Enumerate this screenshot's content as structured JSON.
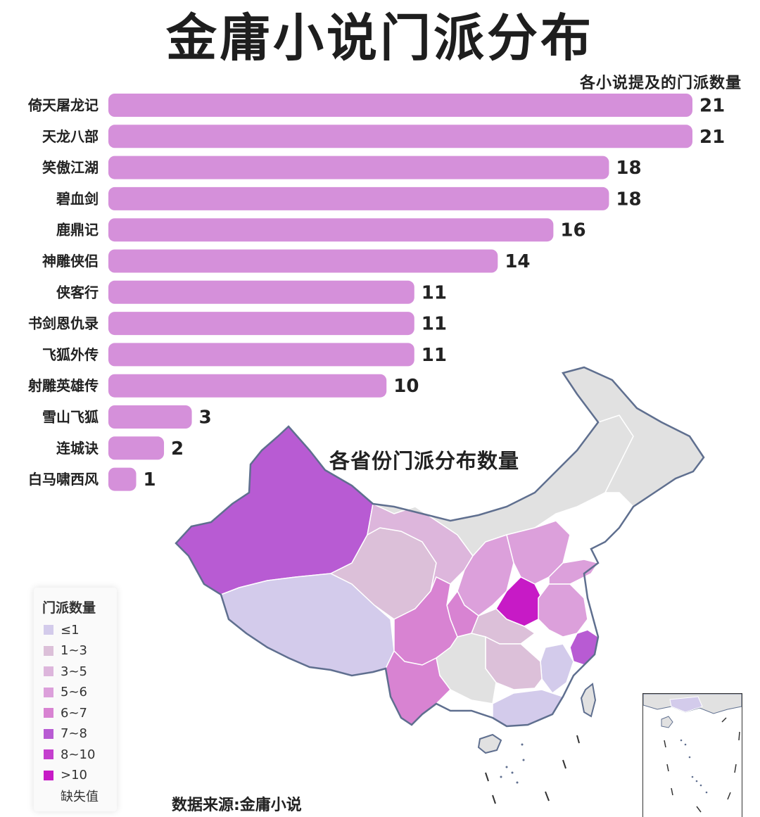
{
  "title": "金庸小说门派分布",
  "bar_subtitle": "各小说提及的门派数量",
  "map_title": "各省份门派分布数量",
  "source": "数据来源:金庸小说",
  "colors": {
    "bar": "#d590da",
    "missing": "#e1e1e1",
    "border": "#5f6f8f",
    "province_line": "#ffffff"
  },
  "legend": {
    "title": "门派数量",
    "items": [
      {
        "label": "≤1",
        "color": "#d3cbeb"
      },
      {
        "label": "1~3",
        "color": "#dcc0d9"
      },
      {
        "label": "3~5",
        "color": "#ddb6dc"
      },
      {
        "label": "5~6",
        "color": "#dca0db"
      },
      {
        "label": "6~7",
        "color": "#d883d2"
      },
      {
        "label": "7~8",
        "color": "#b85bd3"
      },
      {
        "label": "8~10",
        "color": "#c43fce"
      },
      {
        "label": ">10",
        "color": "#c71ac6"
      },
      {
        "label": "缺失值",
        "color": ""
      }
    ]
  },
  "chart_data": [
    {
      "type": "bar",
      "orientation": "horizontal",
      "title": "各小说提及的门派数量",
      "categories": [
        "倚天屠龙记",
        "天龙八部",
        "笑傲江湖",
        "碧血剑",
        "鹿鼎记",
        "神雕侠侣",
        "侠客行",
        "书剑恩仇录",
        "飞狐外传",
        "射雕英雄传",
        "雪山飞狐",
        "连城诀",
        "白马啸西风"
      ],
      "values": [
        21,
        21,
        18,
        18,
        16,
        14,
        11,
        11,
        11,
        10,
        3,
        2,
        1
      ],
      "labels": [
        "21",
        "21",
        "18",
        "18",
        "16",
        "14",
        "11",
        "11",
        "11",
        "10",
        "3",
        "2",
        "1"
      ],
      "xlim": [
        0,
        21
      ],
      "grid": false
    },
    {
      "type": "choropleth",
      "title": "各省份门派分布数量",
      "legend_position": "bottom-left",
      "bins": [
        "≤1",
        "1~3",
        "3~5",
        "5~6",
        "6~7",
        "7~8",
        "8~10",
        ">10",
        "缺失值"
      ],
      "regions": [
        {
          "bin": "7~8"
        },
        {
          "bin": "≤1"
        },
        {
          "bin": "1~3"
        },
        {
          "bin": "3~5"
        },
        {
          "bin": "1~3"
        },
        {
          "bin": "5~6"
        },
        {
          "bin": "5~6"
        },
        {
          "bin": "6~7"
        },
        {
          "bin": ">10"
        },
        {
          "bin": "5~6"
        },
        {
          "bin": "5~6"
        },
        {
          "bin": "1~3"
        },
        {
          "bin": "6~7"
        },
        {
          "bin": "7~8"
        },
        {
          "bin": "≤1"
        },
        {
          "bin": "≤1"
        },
        {
          "bin": "1~3"
        },
        {
          "bin": "1~3"
        },
        {
          "bin": "缺失值"
        }
      ]
    }
  ]
}
